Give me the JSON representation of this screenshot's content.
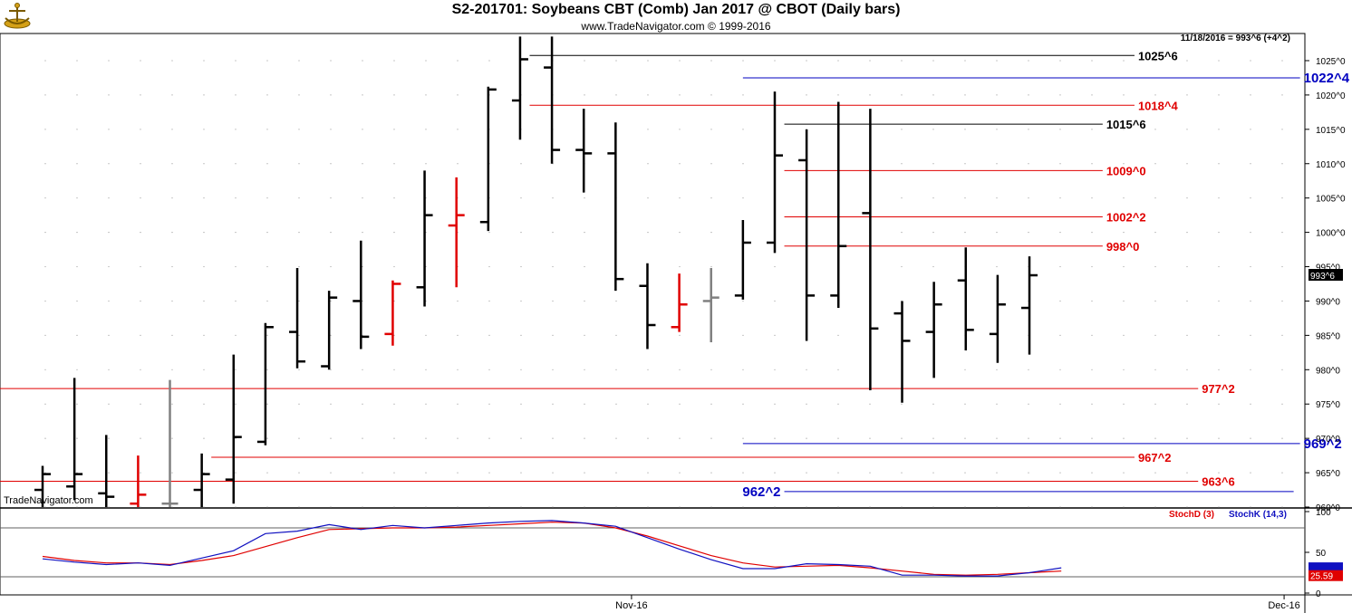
{
  "header": {
    "title": "S2-201701:  Soybeans CBT (Comb) Jan 2017 @ CBOT  (Daily bars)",
    "subtitle": "www.TradeNavigator.com © 1999-2016",
    "watermark": "TradeNavigator.com",
    "last_info": "11/18/2016 = 993^6 (+4^2)"
  },
  "colors": {
    "up": "#000000",
    "down_red": "#e00000",
    "neutral": "#808080",
    "red_line": "#e00000",
    "black_line": "#000000",
    "blue_line": "#0000c0",
    "stochD": "#e00000",
    "stochK": "#1010c0",
    "grid": "#a0a0a0"
  },
  "chart_data": [
    {
      "type": "ohlc",
      "title": "S2-201701:  Soybeans CBT (Comb) Jan 2017 @ CBOT  (Daily bars)",
      "ylim": [
        958,
        1030
      ],
      "y_ticks": [
        "960^0",
        "965^0",
        "970^0",
        "975^0",
        "980^0",
        "985^0",
        "990^0",
        "995^0",
        "1000^0",
        "1005^0",
        "1010^0",
        "1015^0",
        "1020^0",
        "1025^0"
      ],
      "y_tick_values": [
        960,
        965,
        970,
        975,
        980,
        985,
        990,
        995,
        1000,
        1005,
        1010,
        1015,
        1020,
        1025
      ],
      "x_labels": [
        {
          "label": "Nov-16",
          "bar": 18.5
        },
        {
          "label": "Dec-16",
          "bar": 39
        }
      ],
      "last_price_label": "993^6",
      "last_price": 993.75,
      "bars": [
        {
          "o": 962.5,
          "h": 966.0,
          "l": 960.0,
          "c": 964.8,
          "color": "black"
        },
        {
          "o": 963.0,
          "h": 978.8,
          "l": 961.0,
          "c": 964.8,
          "color": "black"
        },
        {
          "o": 962.0,
          "h": 970.5,
          "l": 960.0,
          "c": 961.5,
          "color": "black"
        },
        {
          "o": 960.5,
          "h": 967.5,
          "l": 958.0,
          "c": 961.8,
          "color": "red"
        },
        {
          "o": 960.5,
          "h": 978.5,
          "l": 958.0,
          "c": 960.5,
          "color": "gray"
        },
        {
          "o": 962.5,
          "h": 967.8,
          "l": 959.5,
          "c": 964.8,
          "color": "black"
        },
        {
          "o": 964.0,
          "h": 982.2,
          "l": 960.5,
          "c": 970.2,
          "color": "black"
        },
        {
          "o": 969.5,
          "h": 986.8,
          "l": 969.0,
          "c": 986.2,
          "color": "black"
        },
        {
          "o": 985.5,
          "h": 994.8,
          "l": 980.2,
          "c": 981.2,
          "color": "black"
        },
        {
          "o": 980.5,
          "h": 991.5,
          "l": 980.0,
          "c": 990.5,
          "color": "black"
        },
        {
          "o": 990.0,
          "h": 998.8,
          "l": 983.0,
          "c": 984.8,
          "color": "black"
        },
        {
          "o": 985.2,
          "h": 993.0,
          "l": 983.5,
          "c": 992.5,
          "color": "red"
        },
        {
          "o": 992.0,
          "h": 1009.0,
          "l": 989.2,
          "c": 1002.5,
          "color": "black"
        },
        {
          "o": 1001.0,
          "h": 1008.0,
          "l": 992.0,
          "c": 1002.5,
          "color": "red"
        },
        {
          "o": 1001.5,
          "h": 1021.2,
          "l": 1000.2,
          "c": 1020.8,
          "color": "black"
        },
        {
          "o": 1019.2,
          "h": 1028.5,
          "l": 1013.5,
          "c": 1025.2,
          "color": "black"
        },
        {
          "o": 1024.0,
          "h": 1028.5,
          "l": 1010.0,
          "c": 1012.0,
          "color": "black"
        },
        {
          "o": 1012.0,
          "h": 1018.0,
          "l": 1005.8,
          "c": 1011.5,
          "color": "black"
        },
        {
          "o": 1011.5,
          "h": 1016.0,
          "l": 991.5,
          "c": 993.2,
          "color": "black"
        },
        {
          "o": 992.2,
          "h": 995.5,
          "l": 983.0,
          "c": 986.5,
          "color": "black"
        },
        {
          "o": 986.2,
          "h": 994.0,
          "l": 985.5,
          "c": 989.5,
          "color": "red"
        },
        {
          "o": 990.0,
          "h": 994.8,
          "l": 984.0,
          "c": 990.5,
          "color": "gray"
        },
        {
          "o": 990.8,
          "h": 1001.8,
          "l": 990.2,
          "c": 998.5,
          "color": "black"
        },
        {
          "o": 998.5,
          "h": 1020.5,
          "l": 997.0,
          "c": 1011.2,
          "color": "black"
        },
        {
          "o": 1010.5,
          "h": 1015.0,
          "l": 984.2,
          "c": 990.8,
          "color": "black"
        },
        {
          "o": 990.8,
          "h": 1019.0,
          "l": 989.0,
          "c": 998.0,
          "color": "black"
        },
        {
          "o": 1002.8,
          "h": 1018.0,
          "l": 977.0,
          "c": 986.0,
          "color": "black"
        },
        {
          "o": 988.2,
          "h": 990.0,
          "l": 975.2,
          "c": 984.2,
          "color": "black"
        },
        {
          "o": 985.5,
          "h": 992.8,
          "l": 978.8,
          "c": 989.5,
          "color": "black"
        },
        {
          "o": 993.0,
          "h": 997.8,
          "l": 982.8,
          "c": 985.8,
          "color": "black"
        },
        {
          "o": 985.2,
          "h": 993.8,
          "l": 981.0,
          "c": 989.5,
          "color": "black"
        },
        {
          "o": 989.0,
          "h": 996.5,
          "l": 982.2,
          "c": 993.75,
          "color": "black"
        }
      ],
      "levels": [
        {
          "label": "1025^6",
          "value": 1025.75,
          "color": "black",
          "from_bar": 15.3,
          "to_bar": 34.3
        },
        {
          "label": "1022^4",
          "value": 1022.5,
          "color": "blue",
          "from_bar": 22,
          "to_bar": 39.5
        },
        {
          "label": "1018^4",
          "value": 1018.5,
          "color": "red",
          "from_bar": 15.3,
          "to_bar": 34.3
        },
        {
          "label": "1015^6",
          "value": 1015.75,
          "color": "black",
          "from_bar": 23.3,
          "to_bar": 33.3
        },
        {
          "label": "1009^0",
          "value": 1009.0,
          "color": "red",
          "from_bar": 23.3,
          "to_bar": 33.3
        },
        {
          "label": "1002^2",
          "value": 1002.25,
          "color": "red",
          "from_bar": 23.3,
          "to_bar": 33.3
        },
        {
          "label": "998^0",
          "value": 998.0,
          "color": "red",
          "from_bar": 23.3,
          "to_bar": 33.3
        },
        {
          "label": "977^2",
          "value": 977.25,
          "color": "red",
          "from_bar": -1.5,
          "to_bar": 36.3
        },
        {
          "label": "969^2",
          "value": 969.25,
          "color": "blue",
          "from_bar": 22,
          "to_bar": 39.5
        },
        {
          "label": "967^2",
          "value": 967.25,
          "color": "red",
          "from_bar": 5.3,
          "to_bar": 34.3
        },
        {
          "label": "963^6",
          "value": 963.75,
          "color": "red",
          "from_bar": -1.5,
          "to_bar": 36.3
        },
        {
          "label": "962^2",
          "value": 962.25,
          "color": "blue",
          "from_bar": 23.3,
          "to_bar": 39.3,
          "label_side": "left"
        }
      ]
    },
    {
      "type": "line",
      "title": "Stochastic",
      "ylim": [
        0,
        100
      ],
      "y_ticks": [
        "0",
        "50",
        "100"
      ],
      "y_tick_values": [
        0,
        50,
        100
      ],
      "ref_lines": [
        20,
        80
      ],
      "series": [
        {
          "name": "StochD (3)",
          "color": "red",
          "values": [
            45,
            40,
            37,
            37,
            35,
            40,
            46,
            57,
            68,
            78,
            79,
            80,
            80,
            81,
            83,
            85,
            87,
            86,
            80,
            70,
            58,
            46,
            37,
            32,
            33,
            34,
            31,
            27,
            23,
            22,
            23,
            25,
            27
          ]
        },
        {
          "name": "StochK (14,3)",
          "color": "blue",
          "values": [
            42,
            38,
            35,
            37,
            34,
            43,
            52,
            73,
            76,
            84,
            78,
            83,
            80,
            83,
            86,
            88,
            89,
            86,
            82,
            68,
            54,
            41,
            30,
            30,
            36,
            35,
            33,
            22,
            22,
            21,
            21,
            25,
            31
          ]
        }
      ],
      "last_values": [
        "25.59"
      ]
    }
  ]
}
